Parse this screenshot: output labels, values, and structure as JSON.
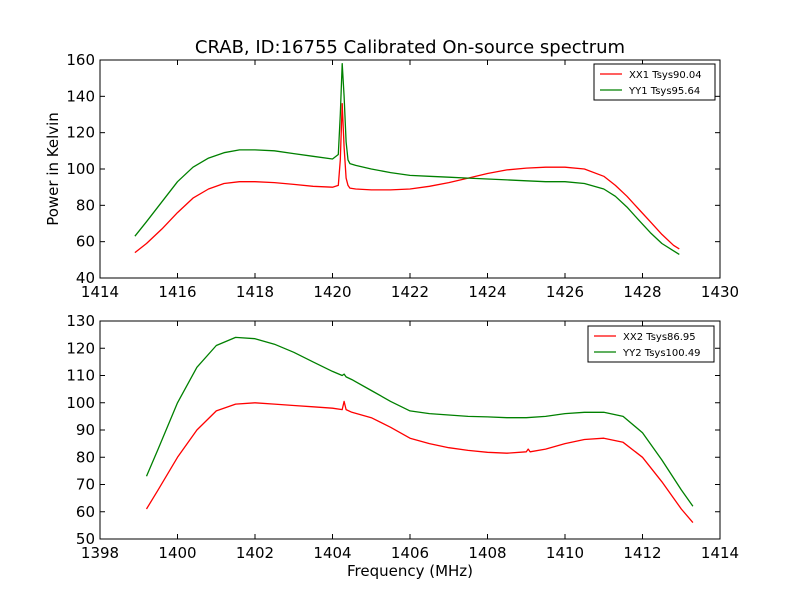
{
  "chart_data": [
    {
      "type": "line",
      "title": "CRAB, ID:16755 Calibrated On-source spectrum",
      "xlabel": "",
      "ylabel": "Power in Kelvin",
      "xlim": [
        1414,
        1430
      ],
      "ylim": [
        40,
        160
      ],
      "x_ticks": [
        1414,
        1416,
        1418,
        1420,
        1422,
        1424,
        1426,
        1428,
        1430
      ],
      "y_ticks": [
        40,
        60,
        80,
        100,
        120,
        140,
        160
      ],
      "legend_position": "top-right",
      "grid": false,
      "series": [
        {
          "name": "XX1 Tsys90.04",
          "color": "#ff0000",
          "x": [
            1414.9,
            1415.2,
            1415.6,
            1416.0,
            1416.4,
            1416.8,
            1417.2,
            1417.6,
            1418.0,
            1418.5,
            1419.0,
            1419.5,
            1420.0,
            1420.15,
            1420.2,
            1420.25,
            1420.3,
            1420.35,
            1420.4,
            1420.45,
            1420.6,
            1421.0,
            1421.5,
            1422.0,
            1422.5,
            1423.0,
            1423.5,
            1424.0,
            1424.5,
            1425.0,
            1425.5,
            1426.0,
            1426.5,
            1427.0,
            1427.3,
            1427.6,
            1427.9,
            1428.2,
            1428.5,
            1428.8,
            1428.95
          ],
          "values": [
            54,
            59,
            67,
            76,
            84,
            89,
            92,
            93,
            93,
            92.5,
            91.5,
            90.5,
            90,
            91,
            105,
            136,
            112,
            95,
            91,
            89.5,
            89,
            88.5,
            88.5,
            89,
            90.5,
            92.5,
            95,
            97.5,
            99.5,
            100.5,
            101,
            101,
            100,
            96,
            91,
            85,
            78,
            71,
            64,
            58,
            56
          ]
        },
        {
          "name": "YY1 Tsys95.64",
          "color": "#008000",
          "x": [
            1414.9,
            1415.2,
            1415.6,
            1416.0,
            1416.4,
            1416.8,
            1417.2,
            1417.6,
            1418.0,
            1418.5,
            1419.0,
            1419.5,
            1420.0,
            1420.15,
            1420.2,
            1420.25,
            1420.3,
            1420.35,
            1420.4,
            1420.45,
            1420.6,
            1421.0,
            1421.5,
            1422.0,
            1422.5,
            1423.0,
            1423.5,
            1424.0,
            1424.5,
            1425.0,
            1425.5,
            1426.0,
            1426.5,
            1427.0,
            1427.3,
            1427.6,
            1427.9,
            1428.2,
            1428.5,
            1428.8,
            1428.95
          ],
          "values": [
            63,
            71,
            82,
            93,
            101,
            106,
            109,
            110.5,
            110.5,
            110,
            108.5,
            107,
            105.5,
            108,
            130,
            158,
            140,
            115,
            105,
            103,
            102,
            100,
            98,
            96.5,
            96,
            95.5,
            95,
            94.5,
            94,
            93.5,
            93,
            93,
            92,
            89,
            85,
            79,
            72,
            65,
            59,
            55,
            53
          ]
        }
      ]
    },
    {
      "type": "line",
      "title": "",
      "xlabel": "Frequency (MHz)",
      "ylabel": "",
      "xlim": [
        1398,
        1414
      ],
      "ylim": [
        50,
        130
      ],
      "x_ticks": [
        1398,
        1400,
        1402,
        1404,
        1406,
        1408,
        1410,
        1412,
        1414
      ],
      "y_ticks": [
        50,
        60,
        70,
        80,
        90,
        100,
        110,
        120,
        130
      ],
      "legend_position": "top-right",
      "grid": false,
      "series": [
        {
          "name": "XX2 Tsys86.95",
          "color": "#ff0000",
          "x": [
            1399.2,
            1399.5,
            1400.0,
            1400.5,
            1401.0,
            1401.5,
            1402.0,
            1402.5,
            1403.0,
            1403.5,
            1404.0,
            1404.25,
            1404.3,
            1404.35,
            1404.5,
            1405.0,
            1405.5,
            1406.0,
            1406.5,
            1407.0,
            1407.5,
            1408.0,
            1408.5,
            1409.0,
            1409.05,
            1409.1,
            1409.5,
            1410.0,
            1410.5,
            1411.0,
            1411.5,
            1412.0,
            1412.5,
            1413.0,
            1413.3
          ],
          "values": [
            61,
            68,
            80,
            90,
            97,
            99.5,
            100,
            99.5,
            99,
            98.5,
            98,
            97.5,
            100.5,
            97.5,
            96.5,
            94.5,
            91,
            87,
            85,
            83.5,
            82.5,
            81.8,
            81.5,
            82,
            83,
            82,
            83,
            85,
            86.5,
            87,
            85.5,
            80,
            71,
            61,
            56
          ]
        },
        {
          "name": "YY2 Tsys100.49",
          "color": "#008000",
          "x": [
            1399.2,
            1399.5,
            1400.0,
            1400.5,
            1401.0,
            1401.5,
            1402.0,
            1402.5,
            1403.0,
            1403.5,
            1404.0,
            1404.25,
            1404.3,
            1404.35,
            1404.5,
            1405.0,
            1405.5,
            1406.0,
            1406.5,
            1407.0,
            1407.5,
            1408.0,
            1408.5,
            1409.0,
            1409.5,
            1410.0,
            1410.5,
            1411.0,
            1411.5,
            1412.0,
            1412.5,
            1413.0,
            1413.3
          ],
          "values": [
            73,
            83,
            100,
            113,
            121,
            124,
            123.5,
            121.5,
            118.5,
            115,
            111.5,
            110,
            110.5,
            109.5,
            108.5,
            104.5,
            100.5,
            97,
            96,
            95.5,
            95,
            94.8,
            94.5,
            94.5,
            95,
            96,
            96.5,
            96.5,
            95,
            89,
            79,
            68,
            62
          ]
        }
      ]
    }
  ]
}
